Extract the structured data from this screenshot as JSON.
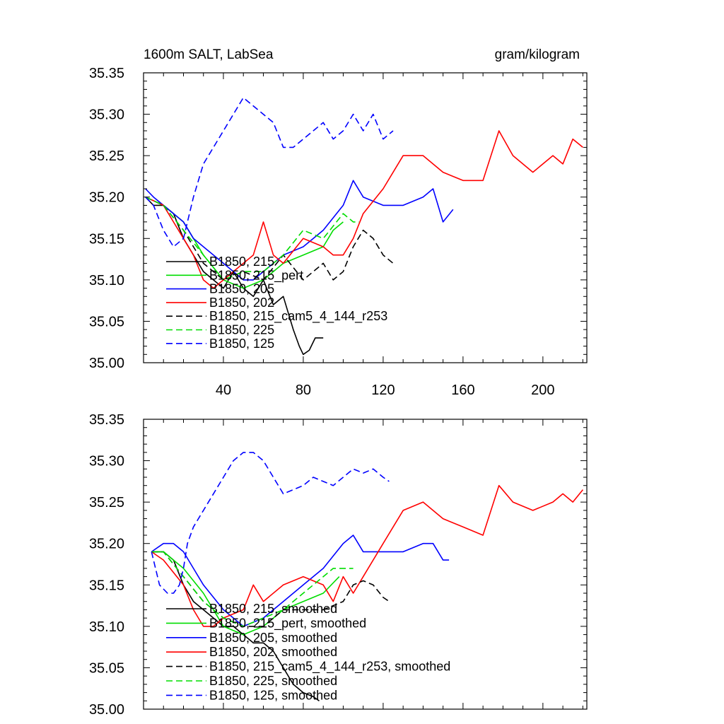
{
  "chart_data": [
    {
      "type": "line",
      "title": "1600m SALT, LabSea",
      "units": "gram/kilogram",
      "xlabel": "",
      "ylabel": "",
      "xlim": [
        0,
        222
      ],
      "ylim": [
        35.0,
        35.35
      ],
      "x_ticks": [
        40,
        80,
        120,
        160,
        200
      ],
      "x_tick_labels": [
        "40",
        "80",
        "120",
        "160",
        "200"
      ],
      "y_ticks": [
        35.0,
        35.05,
        35.1,
        35.15,
        35.2,
        35.25,
        35.3,
        35.35
      ],
      "y_tick_labels": [
        "35.00",
        "35.05",
        "35.10",
        "35.15",
        "35.20",
        "35.25",
        "35.30",
        "35.35"
      ],
      "grid": false,
      "legend_placement": "bottom-left",
      "series": [
        {
          "name": "B1850, 215",
          "color": "#000000",
          "dash": "solid",
          "x": [
            1,
            5,
            10,
            15,
            20,
            25,
            30,
            35,
            40,
            45,
            50,
            55,
            60,
            65,
            70,
            75,
            78,
            80,
            83,
            86,
            90
          ],
          "y": [
            35.2,
            35.19,
            35.19,
            35.18,
            35.15,
            35.13,
            35.11,
            35.1,
            35.09,
            35.11,
            35.09,
            35.08,
            35.1,
            35.07,
            35.08,
            35.04,
            35.02,
            35.01,
            35.015,
            35.03,
            35.03
          ]
        },
        {
          "name": "B1850, 215_pert",
          "color": "#00dd00",
          "dash": "solid",
          "x": [
            1,
            10,
            20,
            30,
            40,
            50,
            60,
            70,
            80,
            90,
            95,
            100
          ],
          "y": [
            35.2,
            35.19,
            35.17,
            35.13,
            35.1,
            35.09,
            35.1,
            35.12,
            35.13,
            35.14,
            35.16,
            35.17
          ]
        },
        {
          "name": "B1850, 205",
          "color": "#0000ff",
          "dash": "solid",
          "x": [
            1,
            5,
            10,
            15,
            20,
            25,
            30,
            40,
            45,
            50,
            55,
            60,
            65,
            70,
            80,
            90,
            100,
            105,
            110,
            120,
            130,
            140,
            145,
            150,
            155
          ],
          "y": [
            35.21,
            35.2,
            35.19,
            35.18,
            35.17,
            35.15,
            35.14,
            35.12,
            35.11,
            35.1,
            35.1,
            35.11,
            35.12,
            35.13,
            35.14,
            35.16,
            35.19,
            35.22,
            35.2,
            35.19,
            35.19,
            35.2,
            35.21,
            35.17,
            35.185
          ]
        },
        {
          "name": "B1850, 202",
          "color": "#ff0000",
          "dash": "solid",
          "x": [
            1,
            10,
            20,
            25,
            30,
            35,
            40,
            45,
            50,
            55,
            60,
            65,
            70,
            80,
            90,
            95,
            100,
            105,
            110,
            120,
            130,
            140,
            150,
            160,
            170,
            178,
            185,
            195,
            205,
            210,
            215,
            220
          ],
          "y": [
            35.2,
            35.19,
            35.15,
            35.13,
            35.1,
            35.09,
            35.1,
            35.11,
            35.12,
            35.13,
            35.17,
            35.13,
            35.12,
            35.15,
            35.14,
            35.13,
            35.13,
            35.15,
            35.18,
            35.21,
            35.25,
            35.25,
            35.23,
            35.22,
            35.22,
            35.28,
            35.25,
            35.23,
            35.25,
            35.24,
            35.27,
            35.26
          ]
        },
        {
          "name": "B1850, 215_cam5_4_144_r253",
          "color": "#000000",
          "dash": "dashed",
          "x": [
            1,
            10,
            20,
            30,
            40,
            50,
            60,
            70,
            80,
            90,
            95,
            100,
            105,
            110,
            115,
            120,
            125
          ],
          "y": [
            35.2,
            35.19,
            35.16,
            35.12,
            35.1,
            35.11,
            35.1,
            35.13,
            35.1,
            35.12,
            35.1,
            35.11,
            35.14,
            35.16,
            35.15,
            35.13,
            35.12
          ]
        },
        {
          "name": "B1850, 225",
          "color": "#00dd00",
          "dash": "dashed",
          "x": [
            1,
            10,
            20,
            30,
            40,
            50,
            60,
            70,
            80,
            90,
            100,
            105,
            108
          ],
          "y": [
            35.2,
            35.19,
            35.16,
            35.13,
            35.1,
            35.11,
            35.11,
            35.13,
            35.16,
            35.15,
            35.18,
            35.17,
            35.17
          ]
        },
        {
          "name": "B1850, 125",
          "color": "#0000ff",
          "dash": "dashed",
          "x": [
            1,
            5,
            10,
            15,
            20,
            25,
            30,
            35,
            40,
            45,
            50,
            55,
            60,
            65,
            70,
            75,
            80,
            85,
            90,
            95,
            100,
            105,
            110,
            115,
            120,
            125
          ],
          "y": [
            35.2,
            35.19,
            35.16,
            35.14,
            35.15,
            35.2,
            35.24,
            35.26,
            35.28,
            35.3,
            35.32,
            35.31,
            35.3,
            35.29,
            35.26,
            35.26,
            35.27,
            35.28,
            35.29,
            35.27,
            35.28,
            35.3,
            35.28,
            35.3,
            35.27,
            35.28
          ]
        }
      ]
    },
    {
      "type": "line",
      "title": "",
      "xlabel": "",
      "ylabel": "",
      "xlim": [
        0,
        222
      ],
      "ylim": [
        35.0,
        35.35
      ],
      "x_ticks": [
        40,
        80,
        120,
        160,
        200
      ],
      "x_tick_labels": [],
      "y_ticks": [
        35.0,
        35.05,
        35.1,
        35.15,
        35.2,
        35.25,
        35.3,
        35.35
      ],
      "y_tick_labels": [
        "35.00",
        "35.05",
        "35.10",
        "35.15",
        "35.20",
        "35.25",
        "35.30",
        "35.35"
      ],
      "grid": false,
      "legend_placement": "bottom-left",
      "series": [
        {
          "name": "B1850, 215, smoothed",
          "color": "#000000",
          "dash": "solid",
          "x": [
            4,
            10,
            15,
            20,
            25,
            30,
            35,
            40,
            45,
            50,
            55,
            60,
            65,
            70,
            75,
            80,
            85,
            88
          ],
          "y": [
            35.19,
            35.19,
            35.18,
            35.15,
            35.13,
            35.12,
            35.11,
            35.1,
            35.1,
            35.09,
            35.08,
            35.08,
            35.07,
            35.05,
            35.03,
            35.02,
            35.015,
            35.01
          ]
        },
        {
          "name": "B1850, 215_pert, smoothed",
          "color": "#00dd00",
          "dash": "solid",
          "x": [
            4,
            10,
            20,
            30,
            40,
            50,
            60,
            70,
            80,
            90,
            98
          ],
          "y": [
            35.19,
            35.19,
            35.17,
            35.14,
            35.1,
            35.09,
            35.1,
            35.12,
            35.13,
            35.14,
            35.16
          ]
        },
        {
          "name": "B1850, 205, smoothed",
          "color": "#0000ff",
          "dash": "solid",
          "x": [
            4,
            10,
            15,
            20,
            25,
            30,
            40,
            50,
            60,
            70,
            80,
            90,
            100,
            105,
            110,
            120,
            130,
            140,
            145,
            150,
            153
          ],
          "y": [
            35.19,
            35.2,
            35.2,
            35.19,
            35.17,
            35.15,
            35.12,
            35.1,
            35.11,
            35.13,
            35.15,
            35.17,
            35.2,
            35.21,
            35.19,
            35.19,
            35.19,
            35.2,
            35.2,
            35.18,
            35.18
          ]
        },
        {
          "name": "B1850, 202, smoothed",
          "color": "#ff0000",
          "dash": "solid",
          "x": [
            4,
            10,
            20,
            25,
            30,
            35,
            40,
            50,
            55,
            60,
            70,
            80,
            90,
            95,
            100,
            105,
            110,
            120,
            130,
            140,
            150,
            160,
            170,
            178,
            185,
            195,
            205,
            210,
            215,
            220
          ],
          "y": [
            35.19,
            35.18,
            35.15,
            35.12,
            35.1,
            35.1,
            35.11,
            35.12,
            35.15,
            35.13,
            35.15,
            35.16,
            35.15,
            35.13,
            35.16,
            35.14,
            35.16,
            35.2,
            35.24,
            35.25,
            35.23,
            35.22,
            35.21,
            35.27,
            35.25,
            35.24,
            35.25,
            35.26,
            35.25,
            35.265
          ]
        },
        {
          "name": "B1850, 215_cam5_4_144_r253, smoothed",
          "color": "#000000",
          "dash": "dashed",
          "x": [
            4,
            10,
            20,
            30,
            40,
            50,
            60,
            70,
            80,
            90,
            100,
            105,
            110,
            115,
            120,
            123
          ],
          "y": [
            35.19,
            35.19,
            35.16,
            35.13,
            35.11,
            35.1,
            35.1,
            35.12,
            35.12,
            35.12,
            35.13,
            35.15,
            35.155,
            35.15,
            35.135,
            35.13
          ]
        },
        {
          "name": "B1850, 225, smoothed",
          "color": "#00dd00",
          "dash": "dashed",
          "x": [
            4,
            10,
            20,
            30,
            40,
            50,
            60,
            70,
            80,
            90,
            95,
            100,
            105
          ],
          "y": [
            35.19,
            35.19,
            35.16,
            35.13,
            35.11,
            35.1,
            35.11,
            35.12,
            35.14,
            35.16,
            35.17,
            35.17,
            35.17
          ]
        },
        {
          "name": "B1850, 125, smoothed",
          "color": "#0000ff",
          "dash": "dashed",
          "x": [
            4,
            8,
            12,
            15,
            18,
            20,
            22,
            25,
            30,
            35,
            40,
            45,
            50,
            55,
            60,
            65,
            70,
            75,
            80,
            85,
            90,
            95,
            100,
            105,
            110,
            115,
            120,
            123
          ],
          "y": [
            35.19,
            35.15,
            35.14,
            35.14,
            35.15,
            35.17,
            35.2,
            35.22,
            35.24,
            35.26,
            35.28,
            35.3,
            35.31,
            35.31,
            35.3,
            35.28,
            35.26,
            35.265,
            35.27,
            35.28,
            35.275,
            35.27,
            35.28,
            35.29,
            35.285,
            35.29,
            35.28,
            35.275
          ]
        }
      ]
    }
  ]
}
